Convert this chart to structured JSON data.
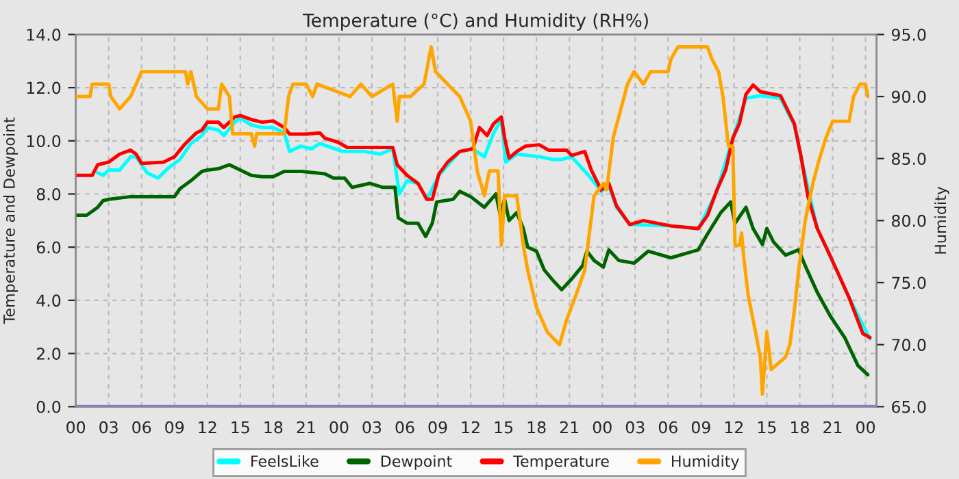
{
  "chart_data": {
    "type": "line",
    "title": "Temperature (°C) and Humidity (RH%)",
    "ylabel": "Temperature and Dewpoint",
    "y2label": "Humidity",
    "xlim": [
      0,
      73
    ],
    "ylim": [
      0,
      14
    ],
    "y2lim": [
      65,
      95
    ],
    "xticks": [
      {
        "value": 0,
        "label": "00"
      },
      {
        "value": 3,
        "label": "03"
      },
      {
        "value": 6,
        "label": "06"
      },
      {
        "value": 9,
        "label": "09"
      },
      {
        "value": 12,
        "label": "12"
      },
      {
        "value": 15,
        "label": "15"
      },
      {
        "value": 18,
        "label": "18"
      },
      {
        "value": 21,
        "label": "21"
      },
      {
        "value": 24,
        "label": "00"
      },
      {
        "value": 27,
        "label": "03"
      },
      {
        "value": 30,
        "label": "06"
      },
      {
        "value": 33,
        "label": "09"
      },
      {
        "value": 36,
        "label": "12"
      },
      {
        "value": 39,
        "label": "15"
      },
      {
        "value": 42,
        "label": "18"
      },
      {
        "value": 45,
        "label": "21"
      },
      {
        "value": 48,
        "label": "00"
      },
      {
        "value": 51,
        "label": "03"
      },
      {
        "value": 54,
        "label": "06"
      },
      {
        "value": 57,
        "label": "09"
      },
      {
        "value": 60,
        "label": "12"
      },
      {
        "value": 63,
        "label": "15"
      },
      {
        "value": 66,
        "label": "18"
      },
      {
        "value": 69,
        "label": "21"
      },
      {
        "value": 72,
        "label": "00"
      }
    ],
    "yticks": [
      {
        "value": 0,
        "label": "0.0"
      },
      {
        "value": 2,
        "label": "2.0"
      },
      {
        "value": 4,
        "label": "4.0"
      },
      {
        "value": 6,
        "label": "6.0"
      },
      {
        "value": 8,
        "label": "8.0"
      },
      {
        "value": 10,
        "label": "10.0"
      },
      {
        "value": 12,
        "label": "12.0"
      },
      {
        "value": 14,
        "label": "14.0"
      }
    ],
    "y2ticks": [
      {
        "value": 65,
        "label": "65.0"
      },
      {
        "value": 70,
        "label": "70.0"
      },
      {
        "value": 75,
        "label": "75.0"
      },
      {
        "value": 80,
        "label": "80.0"
      },
      {
        "value": 85,
        "label": "85.0"
      },
      {
        "value": 90,
        "label": "90.0"
      },
      {
        "value": 95,
        "label": "95.0"
      }
    ],
    "grid": true,
    "legend": "bottom",
    "line_style": "solid",
    "marker": "none",
    "series": [
      {
        "color": "#7b7bee",
        "x": [
          0,
          73
        ],
        "values": [
          0,
          0
        ]
      },
      {
        "name": "FeelsLike",
        "color": "#00ffff",
        "x": [
          2,
          2.5,
          3,
          4,
          5,
          5.5,
          6.5,
          7.5,
          8.5,
          9.5,
          10.5,
          11.5,
          12,
          13,
          13.5,
          14.5,
          15,
          16,
          17,
          18,
          19,
          19.5,
          20.5,
          21.5,
          22.25,
          24.3,
          26.3,
          27.75,
          28.9,
          29.5,
          30.2,
          31.2,
          32,
          33.1,
          35,
          36.2,
          37.25,
          38.1,
          38.8,
          39.2,
          40.2,
          42.3,
          43.5,
          44.3,
          45.2,
          46.75,
          47.9,
          48.6,
          49.3,
          50.5,
          54.25,
          56.75,
          58.4,
          59.9,
          61.1,
          61.75,
          62.4,
          64.25,
          65.5,
          66.1,
          67.6,
          70.5,
          72.4
        ],
        "values": [
          8.8,
          8.7,
          8.9,
          8.9,
          9.4,
          9.4,
          8.8,
          8.6,
          9.0,
          9.3,
          9.9,
          10.2,
          10.5,
          10.4,
          10.2,
          10.7,
          10.85,
          10.6,
          10.5,
          10.5,
          10.3,
          9.6,
          9.8,
          9.7,
          9.9,
          9.6,
          9.6,
          9.5,
          9.7,
          8.0,
          8.5,
          8.4,
          7.8,
          8.7,
          9.6,
          9.7,
          9.4,
          10.3,
          10.8,
          9.2,
          9.5,
          9.4,
          9.3,
          9.3,
          9.4,
          8.7,
          8.1,
          8.3,
          7.5,
          6.85,
          6.8,
          6.7,
          8.05,
          10.1,
          11.6,
          11.65,
          11.7,
          11.6,
          10.6,
          9.4,
          6.7,
          4.1,
          2.55
        ]
      },
      {
        "name": "Dewpoint",
        "color": "#006400",
        "x": [
          0,
          1,
          2,
          2.5,
          3,
          5,
          9,
          9.5,
          10.5,
          11.5,
          12,
          13,
          14,
          15,
          16,
          17,
          18,
          19,
          20.6,
          22.7,
          23.5,
          24.5,
          25.2,
          26.8,
          28,
          29.1,
          29.4,
          30.2,
          31.2,
          31.9,
          32.5,
          32.9,
          34.4,
          35,
          36,
          37.25,
          38.3,
          38.7,
          39.1,
          39.5,
          40.2,
          40.8,
          41.2,
          42,
          42.7,
          43.5,
          44.3,
          45.2,
          46.2,
          46.6,
          47.25,
          48.1,
          48.6,
          49.5,
          50.9,
          52.2,
          54.25,
          56.75,
          57.6,
          58.8,
          59.7,
          60.1,
          61.1,
          61.75,
          62.6,
          63,
          63.6,
          64.7,
          65.9,
          66.5,
          67.6,
          68.8,
          70.1,
          71.3,
          72.2
        ],
        "values": [
          7.2,
          7.2,
          7.5,
          7.75,
          7.8,
          7.9,
          7.9,
          8.2,
          8.5,
          8.85,
          8.9,
          8.95,
          9.1,
          8.9,
          8.7,
          8.65,
          8.65,
          8.85,
          8.85,
          8.76,
          8.6,
          8.6,
          8.25,
          8.4,
          8.25,
          8.25,
          7.1,
          6.9,
          6.9,
          6.4,
          6.9,
          7.7,
          7.8,
          8.1,
          7.9,
          7.5,
          8.0,
          7.2,
          7.8,
          7.0,
          7.3,
          6.7,
          6.0,
          5.85,
          5.15,
          4.75,
          4.4,
          4.8,
          5.3,
          5.85,
          5.5,
          5.25,
          5.9,
          5.5,
          5.4,
          5.85,
          5.6,
          5.9,
          6.5,
          7.3,
          7.7,
          6.9,
          7.5,
          6.7,
          6.1,
          6.7,
          6.2,
          5.7,
          5.9,
          5.3,
          4.3,
          3.4,
          2.6,
          1.55,
          1.2
        ]
      },
      {
        "name": "Temperature",
        "color": "#ff0000",
        "x": [
          0,
          1.5,
          2,
          3,
          4,
          5,
          5.5,
          6,
          8,
          9,
          10,
          11,
          11.5,
          12,
          13,
          13.5,
          14,
          14.5,
          15,
          16,
          17,
          18,
          19,
          19.5,
          21,
          22.25,
          22.7,
          23.9,
          24.75,
          28.9,
          29.3,
          30.2,
          31.2,
          32,
          32.5,
          33.1,
          33.9,
          35,
          36.2,
          36.8,
          37.5,
          38.1,
          38.8,
          39.1,
          39.5,
          40.2,
          41,
          42.25,
          43.1,
          44.75,
          45.2,
          46.4,
          47,
          47.9,
          48.6,
          49.3,
          50.5,
          51.75,
          54.25,
          56.75,
          57.6,
          58.4,
          59.25,
          59.9,
          60.5,
          61.1,
          61.75,
          62.4,
          64.25,
          65.5,
          66.1,
          66.75,
          67.6,
          68.8,
          70.5,
          71.75,
          72.4
        ],
        "values": [
          8.7,
          8.7,
          9.1,
          9.2,
          9.5,
          9.65,
          9.5,
          9.15,
          9.2,
          9.4,
          9.9,
          10.3,
          10.4,
          10.7,
          10.7,
          10.5,
          10.7,
          10.9,
          10.95,
          10.8,
          10.7,
          10.75,
          10.5,
          10.25,
          10.25,
          10.3,
          10.1,
          9.95,
          9.75,
          9.75,
          9.1,
          8.7,
          8.4,
          7.8,
          7.8,
          8.75,
          9.2,
          9.6,
          9.7,
          10.5,
          10.2,
          10.65,
          10.9,
          10.1,
          9.35,
          9.6,
          9.8,
          9.85,
          9.65,
          9.65,
          9.45,
          9.6,
          8.9,
          8.15,
          8.4,
          7.55,
          6.85,
          7.0,
          6.8,
          6.7,
          7.2,
          8.1,
          8.9,
          10.1,
          10.65,
          11.75,
          12.1,
          11.85,
          11.7,
          10.65,
          9.45,
          7.9,
          6.7,
          5.65,
          4.1,
          2.75,
          2.6
        ]
      },
      {
        "name": "Humidity",
        "color": "#ffa500",
        "axis": "y2",
        "x": [
          0,
          1.3,
          1.5,
          3,
          3.2,
          4,
          5,
          5.5,
          6,
          10,
          10.2,
          10.5,
          11,
          12,
          13,
          13.3,
          14,
          14.3,
          16,
          16.3,
          16.5,
          19,
          19.4,
          19.8,
          21,
          21.6,
          22,
          25,
          26,
          27,
          28.9,
          29.3,
          29.5,
          30.5,
          31.75,
          32.4,
          32.8,
          33.9,
          35,
          36,
          36.6,
          37.25,
          37.7,
          38.5,
          38.8,
          39.1,
          40.2,
          40.8,
          41.2,
          42,
          43,
          44.1,
          44.75,
          45.6,
          46.4,
          47.25,
          48.1,
          48.4,
          49,
          49.7,
          50.3,
          50.9,
          51.75,
          52.4,
          54,
          54.25,
          54.9,
          57.6,
          58,
          58.6,
          59,
          59.5,
          59.9,
          60.1,
          60.5,
          60.7,
          60.9,
          61.3,
          61.75,
          62.4,
          62.6,
          63,
          63.4,
          64.7,
          65.1,
          65.5,
          65.9,
          66.5,
          67.2,
          67.8,
          68.4,
          69,
          70.5,
          70.9,
          71.5,
          72,
          72.2
        ],
        "values": [
          90,
          90,
          91,
          91,
          90,
          89,
          90,
          91,
          92,
          92,
          91,
          92,
          90,
          89,
          89,
          91,
          90,
          87,
          87,
          86,
          87,
          87,
          90,
          91,
          91,
          90,
          91,
          90,
          91,
          90,
          91,
          88,
          90,
          90,
          91,
          94,
          92,
          91,
          90,
          88,
          84,
          82,
          84,
          84,
          78,
          82,
          82,
          78,
          76,
          73,
          71,
          70,
          72,
          74,
          76,
          82,
          83,
          82.5,
          86.7,
          89,
          91,
          92,
          91,
          92,
          92,
          93,
          94,
          94,
          93,
          92,
          90,
          86,
          86,
          78,
          78,
          79,
          77,
          74,
          72,
          69,
          66,
          71,
          68,
          69,
          70,
          72.7,
          76,
          80,
          83,
          85,
          86.7,
          88,
          88,
          90,
          91,
          91,
          90
        ]
      }
    ]
  }
}
